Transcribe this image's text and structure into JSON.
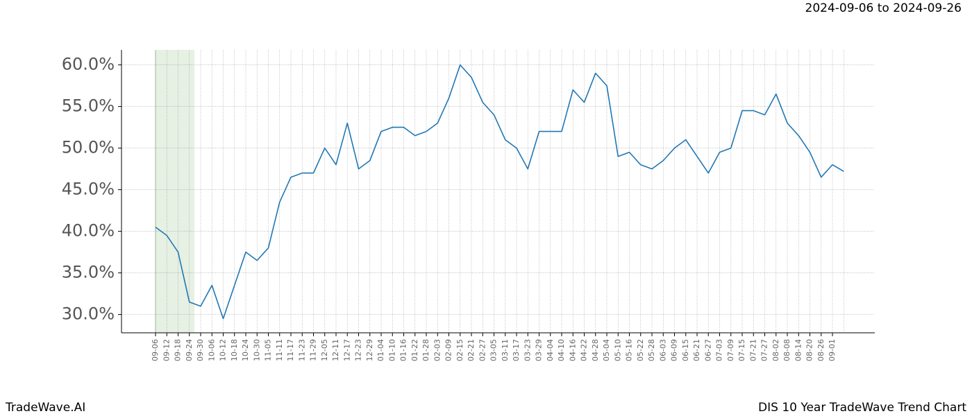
{
  "chart_data": {
    "type": "line",
    "header": "2024-09-06 to 2024-09-26",
    "footer_left": "TradeWave.AI",
    "footer_right": "DIS 10 Year TradeWave Trend Chart",
    "categories": [
      "09-06",
      "09-12",
      "09-18",
      "09-24",
      "09-30",
      "10-06",
      "10-12",
      "10-18",
      "10-24",
      "10-30",
      "11-05",
      "11-11",
      "11-17",
      "11-23",
      "11-29",
      "12-05",
      "12-11",
      "12-17",
      "12-23",
      "12-29",
      "01-04",
      "01-10",
      "01-16",
      "01-22",
      "01-28",
      "02-03",
      "02-09",
      "02-15",
      "02-21",
      "02-27",
      "03-05",
      "03-11",
      "03-17",
      "03-23",
      "03-29",
      "04-04",
      "04-10",
      "04-16",
      "04-22",
      "04-28",
      "05-04",
      "05-10",
      "05-16",
      "05-22",
      "05-28",
      "06-03",
      "06-09",
      "06-15",
      "06-21",
      "06-27",
      "07-03",
      "07-09",
      "07-15",
      "07-21",
      "07-27",
      "08-02",
      "08-08",
      "08-14",
      "08-20",
      "08-26",
      "09-01",
      null
    ],
    "values": [
      40.5,
      39.5,
      37.5,
      31.5,
      31.0,
      33.5,
      29.5,
      33.5,
      37.5,
      36.5,
      38,
      43.5,
      46.5,
      47,
      47,
      50,
      48,
      53,
      47.5,
      48.5,
      52,
      52.5,
      52.5,
      51.5,
      52,
      53,
      56,
      60,
      58.5,
      55.5,
      54,
      51,
      50,
      47.5,
      52,
      52,
      52,
      57,
      55.5,
      59,
      57.5,
      49,
      49.5,
      48,
      47.5,
      48.5,
      50,
      51,
      49,
      47,
      49.5,
      50,
      54.5,
      54.5,
      54,
      56.5,
      53,
      51.5,
      49.5,
      46.5,
      48,
      47.2
    ],
    "color": "#1f77b4",
    "ylim": [
      27.8,
      61.8
    ],
    "yticks": [
      {
        "value": 30,
        "label": "30.0%"
      },
      {
        "value": 35,
        "label": "35.0%"
      },
      {
        "value": 40,
        "label": "40.0%"
      },
      {
        "value": 45,
        "label": "45.0%"
      },
      {
        "value": 50,
        "label": "50.0%"
      },
      {
        "value": 55,
        "label": "55.0%"
      },
      {
        "value": 60,
        "label": "60.0%"
      }
    ],
    "grid": true
  }
}
